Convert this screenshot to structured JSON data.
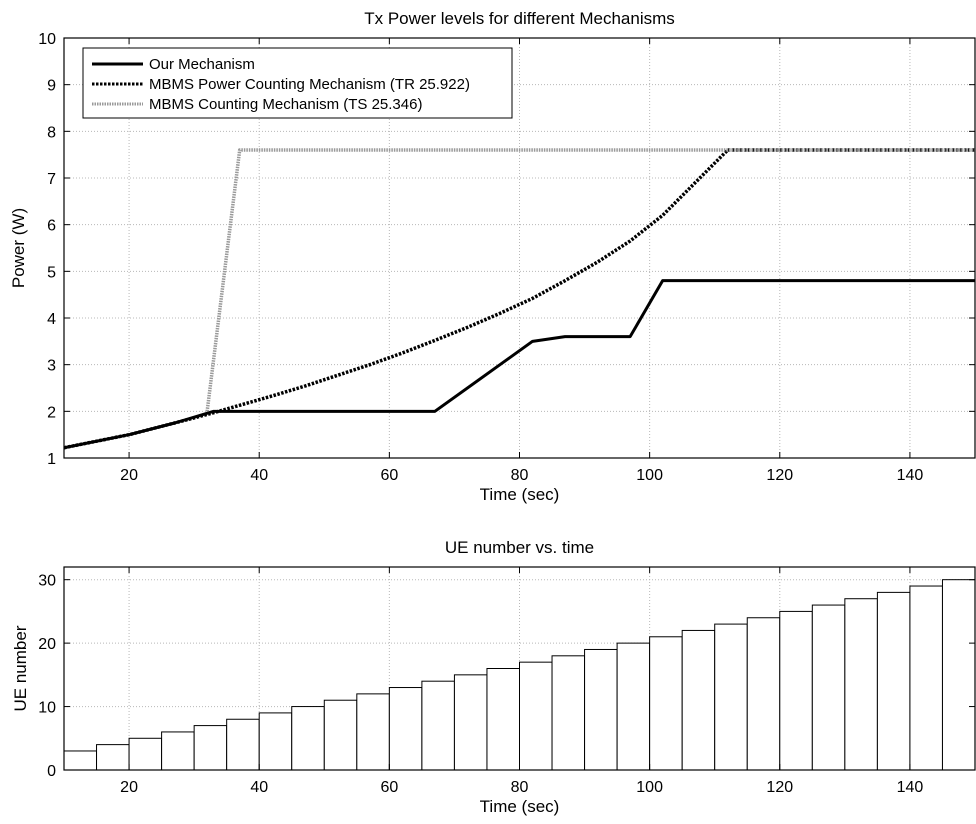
{
  "chart_data": [
    {
      "type": "line",
      "title": "Tx Power levels for different Mechanisms",
      "xlabel": "Time (sec)",
      "ylabel": "Power (W)",
      "xlim": [
        10,
        150
      ],
      "ylim": [
        1,
        10
      ],
      "xticks": [
        20,
        40,
        60,
        80,
        100,
        120,
        140
      ],
      "yticks": [
        1,
        2,
        3,
        4,
        5,
        6,
        7,
        8,
        9,
        10
      ],
      "grid": true,
      "legend_position": "top-left",
      "series": [
        {
          "name": "Our Mechanism",
          "color": "#000000",
          "style": "solid",
          "x": [
            10,
            20,
            27,
            33,
            67,
            82,
            87,
            97,
            102,
            150
          ],
          "y": [
            1.22,
            1.5,
            1.75,
            2.0,
            2.0,
            3.5,
            3.6,
            3.6,
            4.8,
            4.8
          ]
        },
        {
          "name": "MBMS Power Counting Mechanism (TR 25.922)",
          "color": "#000000",
          "style": "dotted",
          "x": [
            10,
            20,
            27,
            33,
            37,
            42,
            47,
            52,
            57,
            62,
            67,
            72,
            77,
            82,
            87,
            92,
            97,
            102,
            107,
            112,
            150
          ],
          "y": [
            1.22,
            1.5,
            1.75,
            1.97,
            2.13,
            2.33,
            2.54,
            2.77,
            3.0,
            3.25,
            3.52,
            3.8,
            4.1,
            4.42,
            4.8,
            5.2,
            5.65,
            6.2,
            6.9,
            7.6,
            7.6
          ]
        },
        {
          "name": "MBMS Counting Mechanism (TS 25.346)",
          "color": "#999999",
          "style": "dotted",
          "x": [
            32,
            37,
            150
          ],
          "y": [
            2.0,
            7.6,
            7.6
          ]
        }
      ]
    },
    {
      "type": "bar",
      "title": "UE number vs. time",
      "xlabel": "Time (sec)",
      "ylabel": "UE number",
      "xlim": [
        10,
        150
      ],
      "ylim": [
        0,
        32
      ],
      "xticks": [
        20,
        40,
        60,
        80,
        100,
        120,
        140
      ],
      "yticks": [
        0,
        10,
        20,
        30
      ],
      "grid": true,
      "bar_width": 5,
      "x": [
        12.5,
        17.5,
        22.5,
        27.5,
        32.5,
        37.5,
        42.5,
        47.5,
        52.5,
        57.5,
        62.5,
        67.5,
        72.5,
        77.5,
        82.5,
        87.5,
        92.5,
        97.5,
        102.5,
        107.5,
        112.5,
        117.5,
        122.5,
        127.5,
        132.5,
        137.5,
        142.5,
        147.5
      ],
      "values": [
        3,
        4,
        5,
        6,
        7,
        8,
        9,
        10,
        11,
        12,
        13,
        14,
        15,
        16,
        17,
        18,
        19,
        20,
        21,
        22,
        23,
        24,
        25,
        26,
        27,
        28,
        29,
        30
      ]
    }
  ]
}
